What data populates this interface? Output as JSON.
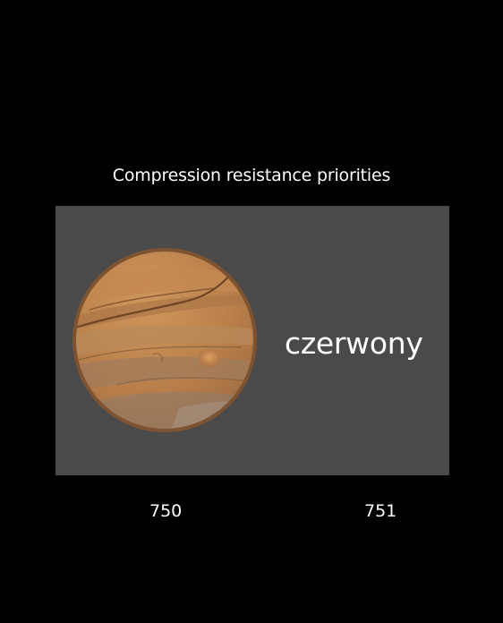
{
  "screen": {
    "background_color": "#000000",
    "title": "Compression resistance priorities"
  },
  "demo": {
    "panel_color": "#4a4a4b",
    "image_icon": "jupiter-planet-icon",
    "label": "czerwony"
  },
  "priorities": {
    "image": "750",
    "label": "751"
  }
}
